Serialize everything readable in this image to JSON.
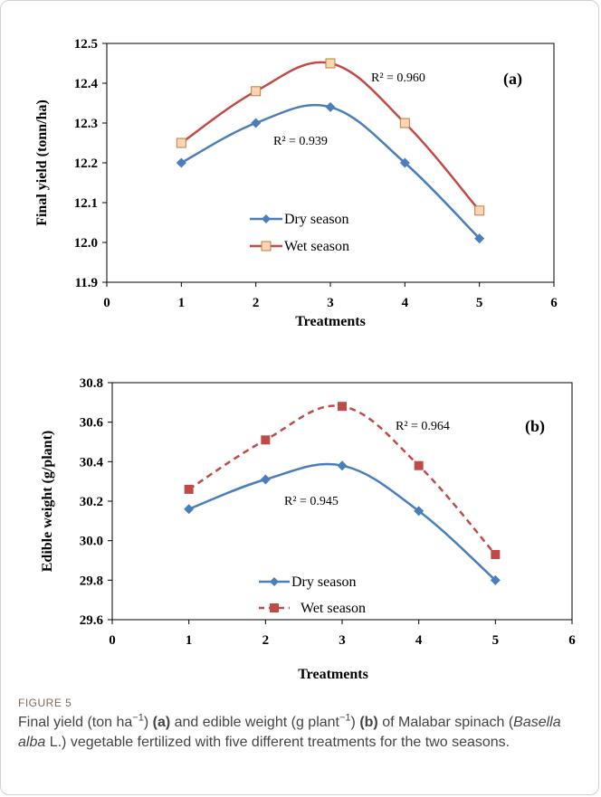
{
  "figure": {
    "label": "FIGURE 5",
    "caption": {
      "p1": "Final yield (ton ha",
      "sup1": "−1",
      "p2": ") ",
      "a": "(a)",
      "p3": " and edible weight (g plant",
      "sup2": "−1",
      "p4": ") ",
      "b": "(b)",
      "p5": " of Malabar spinach (",
      "species": "Basella alba",
      "p6": " L.) vegetable fertilized with five different treatments for the two seasons."
    }
  },
  "chart_data": [
    {
      "type": "line",
      "panel": "(a)",
      "xlabel": "Treatments",
      "ylabel": "Final yield (tonn/ha)",
      "xlim": [
        0,
        6
      ],
      "ylim": [
        11.9,
        12.5
      ],
      "xticks": [
        "0",
        "1",
        "2",
        "3",
        "4",
        "5",
        "6"
      ],
      "yticks": [
        "11.9",
        "12.0",
        "12.1",
        "12.2",
        "12.3",
        "12.4",
        "12.5"
      ],
      "x": [
        1,
        2,
        3,
        4,
        5
      ],
      "series": [
        {
          "name": "Dry season",
          "values": [
            12.2,
            12.3,
            12.34,
            12.2,
            12.01
          ],
          "color": "#4a7ebb",
          "marker": "diamond",
          "dash": "solid"
        },
        {
          "name": "Wet season",
          "values": [
            12.25,
            12.38,
            12.45,
            12.3,
            12.08
          ],
          "color": "#be4b48",
          "marker": "square-open",
          "dash": "solid"
        }
      ],
      "annotations": [
        {
          "text": "R² = 0.960",
          "series": "Wet season"
        },
        {
          "text": "R² = 0.939",
          "series": "Dry season"
        }
      ],
      "legend_position": "lower-center",
      "grid": false
    },
    {
      "type": "line",
      "panel": "(b)",
      "xlabel": "Treatments",
      "ylabel": "Edible weight (g/plant)",
      "xlim": [
        0,
        6
      ],
      "ylim": [
        29.6,
        30.8
      ],
      "xticks": [
        "0",
        "1",
        "2",
        "3",
        "4",
        "5",
        "6"
      ],
      "yticks": [
        "29.6",
        "29.8",
        "30.0",
        "30.2",
        "30.4",
        "30.6",
        "30.8"
      ],
      "x": [
        1,
        2,
        3,
        4,
        5
      ],
      "series": [
        {
          "name": "Dry season",
          "values": [
            30.16,
            30.31,
            30.38,
            30.15,
            29.8
          ],
          "color": "#4a7ebb",
          "marker": "diamond",
          "dash": "solid"
        },
        {
          "name": "Wet season",
          "values": [
            30.26,
            30.51,
            30.68,
            30.38,
            29.93
          ],
          "color": "#be4b48",
          "marker": "square",
          "dash": "dashed"
        }
      ],
      "annotations": [
        {
          "text": "R² = 0.964",
          "series": "Wet season"
        },
        {
          "text": "R² = 0.945",
          "series": "Dry season"
        }
      ],
      "legend_position": "lower-center",
      "grid": false
    }
  ]
}
